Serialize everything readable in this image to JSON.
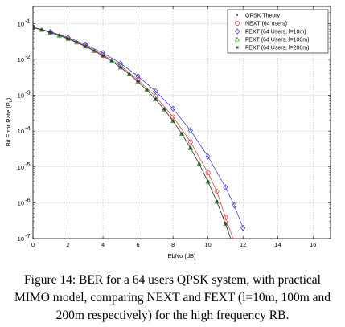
{
  "caption": "Figure 14: BER for a 64 users QPSK system, with practical MIMO model, comparing NEXT and FEXT (l=10m, 100m and 200m respectively) for the high frequency RB.",
  "chart_data": {
    "type": "line",
    "xlabel": "EbNo (dB)",
    "ylabel": "Bit Error Rate (P",
    "ylabel_sub": "b",
    "ylabel_end": ")",
    "xlim": [
      0,
      17
    ],
    "ylim": [
      1e-07,
      0.3
    ],
    "yscale": "log",
    "grid": true,
    "legend_position": "top-right",
    "x_ticks": [
      {
        "value": 0,
        "label": "0"
      },
      {
        "value": 2,
        "label": "2"
      },
      {
        "value": 4,
        "label": "4"
      },
      {
        "value": 6,
        "label": "6"
      },
      {
        "value": 8,
        "label": "8"
      },
      {
        "value": 10,
        "label": "10"
      },
      {
        "value": 12,
        "label": "12"
      },
      {
        "value": 14,
        "label": "14"
      },
      {
        "value": 16,
        "label": "16"
      }
    ],
    "y_ticks": [
      {
        "value": 0.1,
        "label": "10",
        "exp": "-1"
      },
      {
        "value": 0.01,
        "label": "10",
        "exp": "-2"
      },
      {
        "value": 0.001,
        "label": "10",
        "exp": "-3"
      },
      {
        "value": 0.0001,
        "label": "10",
        "exp": "-4"
      },
      {
        "value": 1e-05,
        "label": "10",
        "exp": "-5"
      },
      {
        "value": 1e-06,
        "label": "10",
        "exp": "-6"
      },
      {
        "value": 1e-07,
        "label": "10",
        "exp": "-7"
      }
    ],
    "series": [
      {
        "name": "QPSK Theory",
        "color": "#000000",
        "marker": "dot",
        "line": false,
        "x": [
          0,
          0.5,
          1,
          1.5,
          2,
          2.5,
          3,
          3.5,
          4,
          4.5,
          5,
          5.5,
          6,
          6.5,
          7,
          7.5,
          8,
          8.5,
          9,
          9.5,
          10,
          10.5,
          11,
          11.5
        ],
        "y": [
          0.0786,
          0.0671,
          0.0563,
          0.0464,
          0.0375,
          0.0296,
          0.0229,
          0.0172,
          0.0125,
          0.0088,
          0.00595,
          0.00387,
          0.00239,
          0.00141,
          0.00077,
          0.000401,
          0.000191,
          8.4e-05,
          3.36e-05,
          1.2e-05,
          3.87e-06,
          1.08e-06,
          2.6e-07,
          5.3e-08
        ]
      },
      {
        "name": "NEXT (64 users)",
        "color": "#e03030",
        "marker": "circle",
        "line": true,
        "x": [
          0,
          1,
          2,
          3,
          4,
          5,
          6,
          7,
          8,
          9,
          10,
          10.5,
          11,
          11.5
        ],
        "y": [
          0.077,
          0.057,
          0.039,
          0.024,
          0.0135,
          0.0066,
          0.0027,
          0.00093,
          0.00025,
          5e-05,
          6.8e-06,
          2.1e-06,
          3.9e-07,
          8e-08
        ]
      },
      {
        "name": "FEXT (64 Users, l=10m)",
        "color": "#3030c8",
        "marker": "diamond",
        "line": true,
        "x": [
          0,
          1,
          2,
          3,
          4,
          5,
          6,
          7,
          8,
          9,
          10,
          11,
          11.5,
          12
        ],
        "y": [
          0.079,
          0.059,
          0.041,
          0.026,
          0.015,
          0.0077,
          0.0034,
          0.0013,
          0.00042,
          0.000104,
          1.95e-05,
          2.7e-06,
          8.5e-07,
          2e-07
        ]
      },
      {
        "name": "FEXT (64 Users, l=100m)",
        "color": "#30a030",
        "marker": "triangle",
        "line": true,
        "x": [
          0,
          0.5,
          1,
          1.5,
          2,
          2.5,
          3,
          3.5,
          4,
          4.5,
          5,
          5.5,
          6,
          6.5,
          7,
          7.5,
          8,
          8.5,
          9,
          9.5,
          10,
          10.5,
          11,
          11.5
        ],
        "y": [
          0.0786,
          0.0671,
          0.0563,
          0.0464,
          0.0375,
          0.0296,
          0.0229,
          0.0172,
          0.0125,
          0.0088,
          0.00595,
          0.00387,
          0.00239,
          0.00141,
          0.00077,
          0.000401,
          0.000191,
          8.4e-05,
          3.36e-05,
          1.2e-05,
          3.87e-06,
          1.08e-06,
          2.6e-07,
          5.3e-08
        ]
      },
      {
        "name": "FEXT (64 Users, l=200m)",
        "color": "#303030",
        "marker": "star",
        "line": true,
        "x": [
          0,
          0.5,
          1,
          1.5,
          2,
          2.5,
          3,
          3.5,
          4,
          4.5,
          5,
          5.5,
          6,
          6.5,
          7,
          7.5,
          8,
          8.5,
          9,
          9.5,
          10,
          10.5,
          11,
          11.5
        ],
        "y": [
          0.0786,
          0.0671,
          0.0563,
          0.0464,
          0.0375,
          0.0296,
          0.0229,
          0.0172,
          0.0125,
          0.0088,
          0.00595,
          0.00387,
          0.00239,
          0.00141,
          0.00077,
          0.000401,
          0.000191,
          8.4e-05,
          3.36e-05,
          1.2e-05,
          3.87e-06,
          1.08e-06,
          2.6e-07,
          5.3e-08
        ]
      }
    ]
  }
}
